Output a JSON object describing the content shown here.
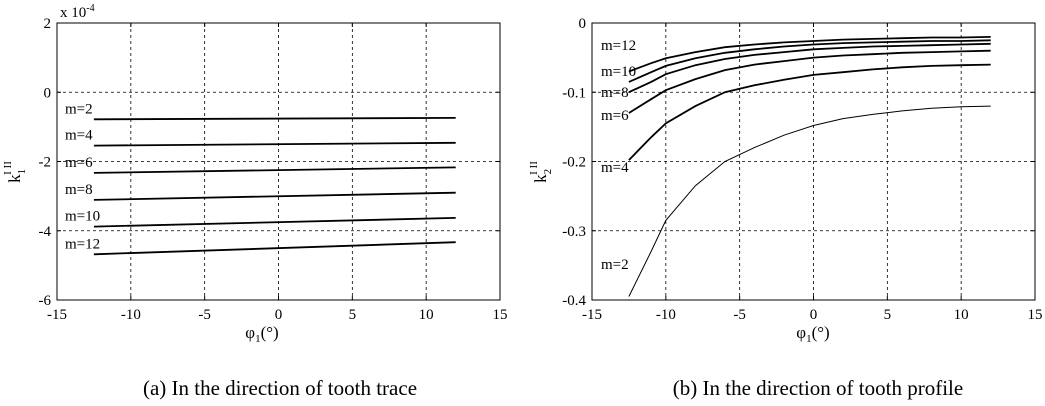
{
  "chart_data": [
    {
      "type": "line",
      "caption": "(a) In the direction of tooth trace",
      "xlabel": {
        "symbol": "φ",
        "sub": "1",
        "unit": "(°)"
      },
      "ylabel": {
        "symbol": "k",
        "sub": "1",
        "sup": "I  II"
      },
      "exponent_label": "x 10",
      "exponent_power": "-4",
      "xlim": [
        -15,
        15
      ],
      "ylim": [
        -6,
        2
      ],
      "x_ticks": [
        -15,
        -10,
        -5,
        0,
        5,
        10,
        15
      ],
      "y_ticks": [
        -6,
        -4,
        -2,
        0,
        2
      ],
      "grid": true,
      "x": [
        -12.5,
        12
      ],
      "series": [
        {
          "name": "m=2",
          "values": [
            -0.78,
            -0.74
          ]
        },
        {
          "name": "m=4",
          "values": [
            -1.54,
            -1.46
          ]
        },
        {
          "name": "m=6",
          "values": [
            -2.33,
            -2.17
          ]
        },
        {
          "name": "m=8",
          "values": [
            -3.11,
            -2.9
          ]
        },
        {
          "name": "m=10",
          "values": [
            -3.88,
            -3.63
          ]
        },
        {
          "name": "m=12",
          "values": [
            -4.68,
            -4.33
          ]
        }
      ]
    },
    {
      "type": "line",
      "caption": "(b) In the direction of tooth profile",
      "xlabel": {
        "symbol": "φ",
        "sub": "1",
        "unit": "(°)"
      },
      "ylabel": {
        "symbol": "k",
        "sub": "2",
        "sup": "I  II"
      },
      "xlim": [
        -15,
        15
      ],
      "ylim": [
        -0.4,
        0
      ],
      "x_ticks": [
        -15,
        -10,
        -5,
        0,
        5,
        10,
        15
      ],
      "y_ticks": [
        -0.4,
        -0.3,
        -0.2,
        -0.1,
        0
      ],
      "grid": true,
      "x": [
        -12.5,
        -11,
        -10,
        -8,
        -6,
        -4,
        -2,
        0,
        2,
        4,
        6,
        8,
        10,
        12
      ],
      "series": [
        {
          "name": "m=2",
          "values": [
            -0.395,
            -0.33,
            -0.285,
            -0.235,
            -0.2,
            -0.18,
            -0.162,
            -0.148,
            -0.138,
            -0.132,
            -0.127,
            -0.123,
            -0.121,
            -0.12
          ]
        },
        {
          "name": "m=4",
          "values": [
            -0.198,
            -0.165,
            -0.145,
            -0.12,
            -0.1,
            -0.09,
            -0.082,
            -0.075,
            -0.071,
            -0.067,
            -0.064,
            -0.062,
            -0.061,
            -0.06
          ]
        },
        {
          "name": "m=6",
          "values": [
            -0.13,
            -0.11,
            -0.097,
            -0.081,
            -0.068,
            -0.06,
            -0.055,
            -0.05,
            -0.047,
            -0.045,
            -0.043,
            -0.042,
            -0.041,
            -0.04
          ]
        },
        {
          "name": "m=8",
          "values": [
            -0.1,
            -0.085,
            -0.074,
            -0.061,
            -0.052,
            -0.046,
            -0.042,
            -0.038,
            -0.036,
            -0.034,
            -0.033,
            -0.032,
            -0.031,
            -0.03
          ]
        },
        {
          "name": "m=10",
          "values": [
            -0.085,
            -0.071,
            -0.062,
            -0.051,
            -0.043,
            -0.038,
            -0.034,
            -0.031,
            -0.029,
            -0.028,
            -0.027,
            -0.026,
            -0.026,
            -0.025
          ]
        },
        {
          "name": "m=12",
          "values": [
            -0.07,
            -0.058,
            -0.051,
            -0.042,
            -0.035,
            -0.031,
            -0.028,
            -0.026,
            -0.024,
            -0.023,
            -0.022,
            -0.021,
            -0.021,
            -0.02
          ]
        }
      ]
    }
  ]
}
